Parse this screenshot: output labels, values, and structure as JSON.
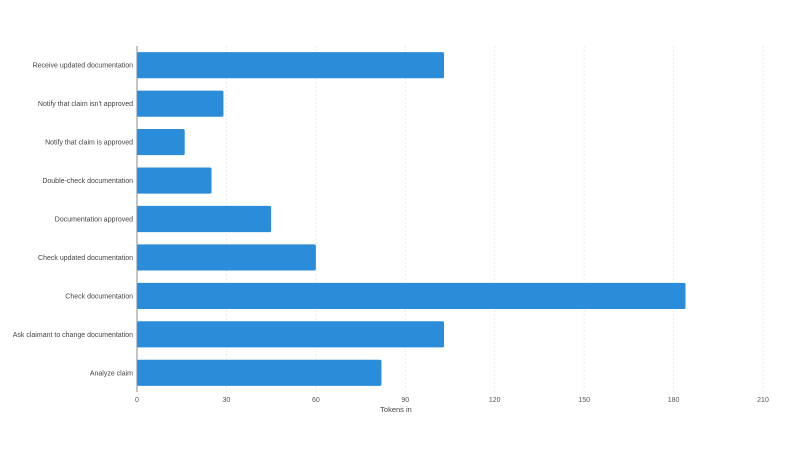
{
  "chart_data": {
    "type": "bar",
    "orientation": "horizontal",
    "categories": [
      "Receive updated documentation",
      "Notify that claim isn't approved",
      "Notify that claim is approved",
      "Double-check documentation",
      "Documentation approved",
      "Check updated documentation",
      "Check documentation",
      "Ask claimant to change  documentation",
      "Analyze claim"
    ],
    "values": [
      103,
      29,
      16,
      25,
      45,
      60,
      184,
      103,
      82
    ],
    "xlabel": "Tokens in",
    "ylabel": "",
    "xlim": [
      0,
      210
    ],
    "xticks": [
      "0",
      "30",
      "60",
      "90",
      "120",
      "150",
      "180",
      "210"
    ],
    "grid": true,
    "bar_color": "#2b8cd9"
  }
}
